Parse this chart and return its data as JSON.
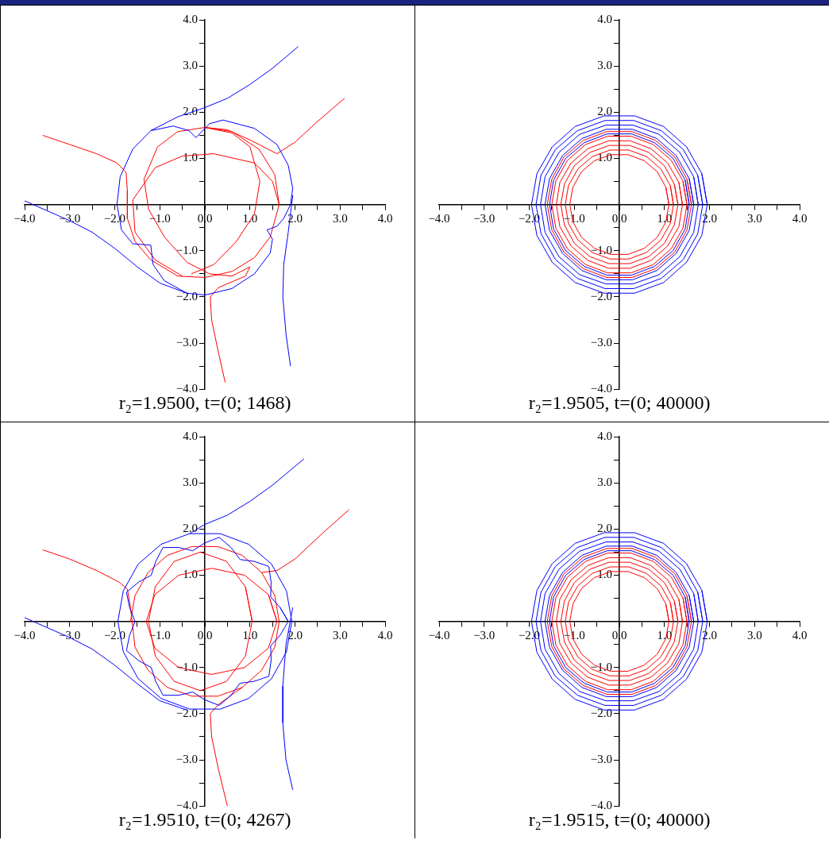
{
  "chart_data": [
    {
      "type": "line",
      "title": "r₂=1.9500, t=(0; 1468)",
      "xlim": [
        -4,
        4
      ],
      "ylim": [
        -4,
        4
      ],
      "xticks": [
        {
          "value": -4,
          "label": "−4.0"
        },
        {
          "value": -3.5,
          "label": null
        },
        {
          "value": -3,
          "label": "−3.0"
        },
        {
          "value": -2.5,
          "label": null
        },
        {
          "value": -2,
          "label": "−2.0"
        },
        {
          "value": -1.5,
          "label": null
        },
        {
          "value": -1,
          "label": "−1.0"
        },
        {
          "value": -0.5,
          "label": null
        },
        {
          "value": 0,
          "label": "0.0"
        },
        {
          "value": 0.5,
          "label": null
        },
        {
          "value": 1,
          "label": "1.0"
        },
        {
          "value": 1.5,
          "label": null
        },
        {
          "value": 2,
          "label": "2.0"
        },
        {
          "value": 2.5,
          "label": null
        },
        {
          "value": 3,
          "label": "3.0"
        },
        {
          "value": 3.5,
          "label": null
        },
        {
          "value": 4,
          "label": "4.0"
        }
      ],
      "yticks": [
        {
          "value": -4,
          "label": "−4.0"
        },
        {
          "value": -3.5,
          "label": null
        },
        {
          "value": -3,
          "label": "−3.0"
        },
        {
          "value": -2.5,
          "label": null
        },
        {
          "value": -2,
          "label": "−2.0"
        },
        {
          "value": -1.5,
          "label": null
        },
        {
          "value": -1,
          "label": "−1.0"
        },
        {
          "value": -0.5,
          "label": null
        },
        {
          "value": 0,
          "label": null
        },
        {
          "value": 0.5,
          "label": null
        },
        {
          "value": 1,
          "label": "1.0"
        },
        {
          "value": 1.5,
          "label": null
        },
        {
          "value": 2,
          "label": "2.0"
        },
        {
          "value": 2.5,
          "label": null
        },
        {
          "value": 3,
          "label": "3.0"
        },
        {
          "value": 3.5,
          "label": null
        },
        {
          "value": 4,
          "label": "4.0"
        }
      ],
      "series": [
        {
          "color": "#0000ff",
          "x": [
            2.07,
            1.5,
            1.0,
            0.5,
            0,
            -0.6,
            -1.2,
            -1.6,
            -1.88,
            -1.95,
            -1.85,
            -1.6,
            -1.2,
            -1.18,
            -1.15,
            -0.9,
            -0.4,
            0,
            0.6,
            1.1,
            1.45,
            1.5,
            1.38,
            1.6,
            1.75,
            1.9,
            1.95,
            1.85,
            1.6,
            1.1,
            0.4,
            0.1,
            0,
            -0.2,
            -0.35,
            -0.7,
            -1.2,
            null,
            -4.0,
            -3.0,
            -2.5,
            -2.0,
            -1.5,
            -1.0,
            -0.4,
            null,
            1.95,
            1.85,
            1.75,
            1.73,
            1.8,
            1.9
          ],
          "values": [
            3.42,
            2.95,
            2.6,
            2.3,
            2.1,
            1.9,
            1.6,
            1.2,
            0.6,
            0,
            -0.55,
            -0.85,
            -0.88,
            -1.05,
            -1.3,
            -1.65,
            -1.92,
            -1.96,
            -1.82,
            -1.5,
            -1.05,
            -0.75,
            -0.55,
            -0.47,
            -0.3,
            0,
            0.35,
            0.85,
            1.3,
            1.65,
            1.83,
            1.75,
            1.65,
            1.45,
            1.6,
            1.7,
            1.6,
            null,
            0.08,
            -0.35,
            -0.6,
            -0.95,
            -1.35,
            -1.7,
            -1.92,
            null,
            0.2,
            -0.6,
            -1.3,
            -2.0,
            -2.8,
            -3.5
          ]
        },
        {
          "color": "#ff0000",
          "x": [
            -3.6,
            -3.0,
            -2.4,
            -1.95,
            -1.75,
            -1.72,
            -1.72,
            -1.55,
            -1.2,
            -0.6,
            0,
            0.6,
            1.1,
            1.45,
            1.65,
            1.55,
            1.2,
            0.6,
            0,
            -0.6,
            -1.05,
            -1.35,
            -1.25,
            -0.9,
            -0.4,
            0.1,
            0.6,
            1.0,
            0.9,
            0.3,
            0.12,
            0.15,
            0.3,
            0.45,
            null,
            3.1,
            2.5,
            2.0,
            1.6,
            1.4,
            1.0,
            0.5,
            0,
            null,
            0,
            0.6,
            1.0,
            1.22,
            1.1,
            0.7,
            0.2,
            -0.3,
            null,
            1.65,
            1.5,
            1.1,
            0.2,
            -0.5,
            -1.1,
            -1.6,
            -1.55,
            -1.1,
            -0.5
          ],
          "values": [
            1.5,
            1.3,
            1.1,
            0.9,
            0.7,
            0.3,
            -0.3,
            -0.8,
            -1.2,
            -1.55,
            -1.58,
            -1.45,
            -1.15,
            -0.7,
            0,
            0.65,
            1.2,
            1.58,
            1.67,
            1.58,
            1.25,
            0.55,
            -0.1,
            -0.7,
            -1.25,
            -1.5,
            -1.55,
            -1.35,
            -1.55,
            -1.8,
            -2.0,
            -2.5,
            -3.2,
            -3.85,
            null,
            2.3,
            1.8,
            1.35,
            1.1,
            1.2,
            1.4,
            1.62,
            1.67,
            null,
            1.67,
            1.55,
            1.25,
            0.5,
            -0.2,
            -0.8,
            -1.3,
            -1.5,
            null,
            0,
            0.5,
            0.9,
            1.1,
            1.05,
            0.8,
            0.1,
            -0.6,
            -1.2,
            -1.55
          ]
        }
      ]
    },
    {
      "type": "line",
      "title": "r₂=1.9505, t=(0; 40000)",
      "xlim": [
        -4,
        4
      ],
      "ylim": [
        -4,
        4
      ],
      "xticks": [
        {
          "value": -4,
          "label": "−4.0"
        },
        {
          "value": -3.5,
          "label": null
        },
        {
          "value": -3,
          "label": "−3.0"
        },
        {
          "value": -2.5,
          "label": null
        },
        {
          "value": -2,
          "label": "−2.0"
        },
        {
          "value": -1.5,
          "label": null
        },
        {
          "value": -1,
          "label": "−1.0"
        },
        {
          "value": -0.5,
          "label": null
        },
        {
          "value": 0,
          "label": "0.0"
        },
        {
          "value": 0.5,
          "label": null
        },
        {
          "value": 1,
          "label": "1.0"
        },
        {
          "value": 1.5,
          "label": null
        },
        {
          "value": 2,
          "label": "2.0"
        },
        {
          "value": 2.5,
          "label": null
        },
        {
          "value": 3,
          "label": "3.0"
        },
        {
          "value": 3.5,
          "label": null
        },
        {
          "value": 4,
          "label": "4.0"
        }
      ],
      "yticks": [
        {
          "value": -4,
          "label": "−4.0"
        },
        {
          "value": -3.5,
          "label": null
        },
        {
          "value": -3,
          "label": "−3.0"
        },
        {
          "value": -2.5,
          "label": null
        },
        {
          "value": -2,
          "label": "−2.0"
        },
        {
          "value": -1.5,
          "label": null
        },
        {
          "value": -1,
          "label": "−1.0"
        },
        {
          "value": -0.5,
          "label": null
        },
        {
          "value": 0,
          "label": null
        },
        {
          "value": 0.5,
          "label": null
        },
        {
          "value": 1,
          "label": "1.0"
        },
        {
          "value": 1.5,
          "label": null
        },
        {
          "value": 2,
          "label": "2.0"
        },
        {
          "value": 2.5,
          "label": null
        },
        {
          "value": 3,
          "label": "3.0"
        },
        {
          "value": 3.5,
          "label": null
        },
        {
          "value": 4,
          "label": "4.0"
        }
      ],
      "series": [
        {
          "color": "#0000ff",
          "x": [
            1.95,
            1.83,
            1.49,
            0.98,
            0.34,
            -0.34,
            -0.98,
            -1.49,
            -1.83,
            -1.95,
            -1.83,
            -1.49,
            -0.98,
            -0.34,
            0.34,
            0.98,
            1.49,
            1.83,
            1.95,
            1.83
          ],
          "values": [
            0,
            0.67,
            1.25,
            1.69,
            1.92,
            1.92,
            1.69,
            1.25,
            0.67,
            0,
            -0.67,
            -1.25,
            -1.69,
            -1.92,
            -1.92,
            -1.69,
            -1.25,
            -0.67,
            0,
            0.67
          ]
        },
        {
          "color": "#0000ff",
          "x": [
            1.85,
            1.74,
            1.42,
            0.93,
            0.32,
            -0.32,
            -0.93,
            -1.42,
            -1.74,
            -1.85,
            -1.74,
            -1.42,
            -0.93,
            -0.32,
            0.32,
            0.93,
            1.42,
            1.74,
            1.85,
            1.74
          ],
          "values": [
            0,
            0.63,
            1.19,
            1.6,
            1.82,
            1.82,
            1.6,
            1.19,
            0.63,
            0,
            -0.63,
            -1.19,
            -1.6,
            -1.82,
            -1.82,
            -1.6,
            -1.19,
            -0.63,
            0,
            0.63
          ]
        },
        {
          "color": "#0000ff",
          "x": [
            1.75,
            1.65,
            1.34,
            0.88,
            0.3,
            -0.3,
            -0.88,
            -1.34,
            -1.65,
            -1.75,
            -1.65,
            -1.34,
            -0.88,
            -0.3,
            0.3,
            0.88,
            1.34,
            1.65,
            1.75,
            1.65
          ],
          "values": [
            0,
            0.6,
            1.13,
            1.52,
            1.72,
            1.72,
            1.52,
            1.13,
            0.6,
            0,
            -0.6,
            -1.13,
            -1.52,
            -1.72,
            -1.72,
            -1.52,
            -1.13,
            -0.6,
            0,
            0.6
          ]
        },
        {
          "color": "#0000ff",
          "x": [
            1.65,
            1.55,
            1.26,
            0.83,
            0.29,
            -0.29,
            -0.83,
            -1.26,
            -1.55,
            -1.65,
            -1.55,
            -1.26,
            -0.83,
            -0.29,
            0.29,
            0.83,
            1.26,
            1.55,
            1.65,
            1.55
          ],
          "values": [
            0,
            0.56,
            1.06,
            1.43,
            1.63,
            1.63,
            1.43,
            1.06,
            0.56,
            0,
            -0.56,
            -1.06,
            -1.43,
            -1.63,
            -1.63,
            -1.43,
            -1.06,
            -0.56,
            0,
            0.56
          ]
        },
        {
          "color": "#0000ff",
          "x": [
            1.55,
            1.46,
            1.19,
            0.78,
            0.27,
            -0.27,
            -0.78,
            -1.19,
            -1.46,
            -1.55,
            -1.46,
            -1.19,
            -0.78,
            -0.27,
            0.27,
            0.78,
            1.19,
            1.46,
            1.55,
            1.46
          ],
          "values": [
            0,
            0.53,
            1.0,
            1.34,
            1.53,
            1.53,
            1.34,
            1.0,
            0.53,
            0,
            -0.53,
            -1.0,
            -1.34,
            -1.53,
            -1.53,
            -1.34,
            -1.0,
            -0.53,
            0,
            0.53
          ]
        },
        {
          "color": "#ff0000",
          "x": [
            1.6,
            1.5,
            1.23,
            0.8,
            0.28,
            -0.28,
            -0.8,
            -1.23,
            -1.5,
            -1.6,
            -1.5,
            -1.23,
            -0.8,
            -0.28,
            0.28,
            0.8,
            1.23,
            1.5,
            1.6,
            1.5
          ],
          "values": [
            0,
            0.55,
            1.03,
            1.39,
            1.58,
            1.58,
            1.39,
            1.03,
            0.55,
            0,
            -0.55,
            -1.03,
            -1.39,
            -1.58,
            -1.58,
            -1.39,
            -1.03,
            -0.55,
            0,
            0.55
          ]
        },
        {
          "color": "#ff0000",
          "x": [
            1.5,
            1.41,
            1.15,
            0.75,
            0.26,
            -0.26,
            -0.75,
            -1.15,
            -1.41,
            -1.5,
            -1.41,
            -1.15,
            -0.75,
            -0.26,
            0.26,
            0.75,
            1.15,
            1.41,
            1.5,
            1.41
          ],
          "values": [
            0,
            0.51,
            0.96,
            1.3,
            1.48,
            1.48,
            1.3,
            0.96,
            0.51,
            0,
            -0.51,
            -0.96,
            -1.3,
            -1.48,
            -1.48,
            -1.3,
            -0.96,
            -0.51,
            0,
            0.51
          ]
        },
        {
          "color": "#ff0000",
          "x": [
            1.4,
            1.32,
            1.07,
            0.7,
            0.24,
            -0.24,
            -0.7,
            -1.07,
            -1.32,
            -1.4,
            -1.32,
            -1.07,
            -0.7,
            -0.24,
            0.24,
            0.7,
            1.07,
            1.32,
            1.4,
            1.32
          ],
          "values": [
            0,
            0.48,
            0.9,
            1.21,
            1.38,
            1.38,
            1.21,
            0.9,
            0.48,
            0,
            -0.48,
            -0.9,
            -1.21,
            -1.38,
            -1.38,
            -1.21,
            -0.9,
            -0.48,
            0,
            0.48
          ]
        },
        {
          "color": "#ff0000",
          "x": [
            1.3,
            1.22,
            1.0,
            0.65,
            0.23,
            -0.23,
            -0.65,
            -1.0,
            -1.22,
            -1.3,
            -1.22,
            -1.0,
            -0.65,
            -0.23,
            0.23,
            0.65,
            1.0,
            1.22,
            1.3,
            1.22
          ],
          "values": [
            0,
            0.44,
            0.84,
            1.13,
            1.28,
            1.28,
            1.13,
            0.84,
            0.44,
            0,
            -0.44,
            -0.84,
            -1.13,
            -1.28,
            -1.28,
            -1.13,
            -0.84,
            -0.44,
            0,
            0.44
          ]
        },
        {
          "color": "#ff0000",
          "x": [
            1.2,
            1.13,
            0.92,
            0.6,
            0.21,
            -0.21,
            -0.6,
            -0.92,
            -1.13,
            -1.2,
            -1.13,
            -0.92,
            -0.6,
            -0.21,
            0.21,
            0.6,
            0.92,
            1.13,
            1.2,
            1.13
          ],
          "values": [
            0,
            0.41,
            0.77,
            1.04,
            1.18,
            1.18,
            1.04,
            0.77,
            0.41,
            0,
            -0.41,
            -0.77,
            -1.04,
            -1.18,
            -1.18,
            -1.04,
            -0.77,
            -0.41,
            0,
            0.41
          ]
        },
        {
          "color": "#ff0000",
          "x": [
            1.1,
            1.03,
            0.84,
            0.55,
            0.19,
            -0.19,
            -0.55,
            -0.84,
            -1.03,
            -1.1,
            -1.03,
            -0.84,
            -0.55,
            -0.19,
            0.19,
            0.55,
            0.84,
            1.03,
            1.1,
            1.03
          ],
          "values": [
            0,
            0.38,
            0.71,
            0.95,
            1.08,
            1.08,
            0.95,
            0.71,
            0.38,
            0,
            -0.38,
            -0.71,
            -0.95,
            -1.08,
            -1.08,
            -0.95,
            -0.71,
            -0.38,
            0,
            0.38
          ]
        }
      ]
    },
    {
      "type": "line",
      "title": "r₂=1.9510, t=(0; 4267)",
      "xlim": [
        -4,
        4
      ],
      "ylim": [
        -4,
        4
      ],
      "xticks": [
        {
          "value": -4,
          "label": "−4.0"
        },
        {
          "value": -3.5,
          "label": null
        },
        {
          "value": -3,
          "label": "−3.0"
        },
        {
          "value": -2.5,
          "label": null
        },
        {
          "value": -2,
          "label": "−2.0"
        },
        {
          "value": -1.5,
          "label": null
        },
        {
          "value": -1,
          "label": "−1.0"
        },
        {
          "value": -0.5,
          "label": null
        },
        {
          "value": 0,
          "label": "0.0"
        },
        {
          "value": 0.5,
          "label": null
        },
        {
          "value": 1,
          "label": "1.0"
        },
        {
          "value": 1.5,
          "label": null
        },
        {
          "value": 2,
          "label": "2.0"
        },
        {
          "value": 2.5,
          "label": null
        },
        {
          "value": 3,
          "label": "3.0"
        },
        {
          "value": 3.5,
          "label": null
        },
        {
          "value": 4,
          "label": "4.0"
        }
      ],
      "yticks": [
        {
          "value": -4,
          "label": "−4.0"
        },
        {
          "value": -3.5,
          "label": null
        },
        {
          "value": -3,
          "label": "−3.0"
        },
        {
          "value": -2.5,
          "label": null
        },
        {
          "value": -2,
          "label": "−2.0"
        },
        {
          "value": -1.5,
          "label": null
        },
        {
          "value": -1,
          "label": "−1.0"
        },
        {
          "value": -0.5,
          "label": null
        },
        {
          "value": 0,
          "label": null
        },
        {
          "value": 0.5,
          "label": null
        },
        {
          "value": 1,
          "label": "1.0"
        },
        {
          "value": 1.5,
          "label": null
        },
        {
          "value": 2,
          "label": "2.0"
        },
        {
          "value": 2.5,
          "label": null
        },
        {
          "value": 3,
          "label": "3.0"
        },
        {
          "value": 3.5,
          "label": null
        },
        {
          "value": 4,
          "label": "4.0"
        }
      ],
      "series": [
        {
          "color": "#0000ff",
          "x": [
            2.2,
            1.5,
            1.0,
            0.5,
            0,
            -0.34,
            -0.97,
            -1.48,
            -1.81,
            -1.93,
            -1.81,
            -1.48,
            -0.97,
            -0.34,
            0.34,
            0.97,
            1.48,
            1.81,
            1.93,
            1.81,
            1.48,
            0.97,
            0.34,
            -0.34
          ],
          "values": [
            3.52,
            2.95,
            2.6,
            2.3,
            2.1,
            1.9,
            1.67,
            1.24,
            0.66,
            0,
            -0.66,
            -1.24,
            -1.67,
            -1.9,
            -1.9,
            -1.67,
            -1.24,
            -0.66,
            0,
            0.66,
            1.24,
            1.67,
            1.9,
            1.9
          ]
        },
        {
          "color": "#0000ff",
          "x": [
            1.85,
            1.67,
            1.46,
            1.47,
            1.42,
            1.09,
            0.78,
            0.58,
            0.32,
            0,
            -0.27,
            -0.58,
            -0.93,
            -1.09,
            -1.19,
            -1.47,
            -1.74,
            -1.67,
            -1.55,
            -1.67,
            -1.74,
            -1.47,
            -1.19,
            -1.09,
            -0.93,
            -0.58,
            -0.27,
            0,
            0.32,
            0.58,
            0.78,
            1.09,
            1.42,
            1.47,
            1.46,
            1.67,
            1.85,
            1.67
          ],
          "values": [
            0,
            0.3,
            0.53,
            0.85,
            1.19,
            1.3,
            1.34,
            1.6,
            1.82,
            1.7,
            1.53,
            1.6,
            1.6,
            1.3,
            1.0,
            0.85,
            0.63,
            0.3,
            0,
            -0.3,
            -0.63,
            -0.85,
            -1.0,
            -1.3,
            -1.6,
            -1.6,
            -1.53,
            -1.7,
            -1.82,
            -1.6,
            -1.34,
            -1.3,
            -1.19,
            -0.85,
            -0.53,
            -0.3,
            0,
            0.3
          ]
        },
        {
          "color": "#0000ff",
          "x": [
            -4.0,
            -3.0,
            -2.5,
            -2.0,
            -1.5,
            -1.0,
            -0.4
          ],
          "values": [
            0.08,
            -0.35,
            -0.6,
            -0.95,
            -1.35,
            -1.72,
            -1.92
          ]
        },
        {
          "color": "#0000ff",
          "x": [
            1.95,
            1.8,
            1.73,
            1.73,
            1.8,
            1.95
          ],
          "values": [
            0.3,
            -0.5,
            -1.4,
            -2.2,
            -3.0,
            -3.65
          ]
        },
        {
          "color": "#ff0000",
          "x": [
            -3.6,
            -3.0,
            -2.4,
            -1.9,
            -1.72,
            -1.65,
            -1.55,
            -1.26,
            -0.83,
            -0.29,
            0.29,
            0.83,
            1.26,
            1.55,
            1.65,
            1.55,
            1.26,
            0.83,
            0.29,
            -0.29,
            -0.83,
            -1.26,
            -1.55,
            -1.65
          ],
          "values": [
            1.55,
            1.35,
            1.1,
            0.85,
            0.7,
            0.3,
            -0.56,
            -1.06,
            -1.43,
            -1.62,
            -1.62,
            -1.43,
            -1.06,
            -0.56,
            0,
            0.56,
            1.06,
            1.43,
            1.62,
            1.62,
            1.43,
            1.06,
            0.56,
            0
          ]
        },
        {
          "color": "#ff0000",
          "x": [
            3.2,
            2.6,
            2.0,
            1.6,
            1.26
          ],
          "values": [
            2.42,
            1.9,
            1.35,
            1.1,
            1.06
          ]
        },
        {
          "color": "#ff0000",
          "x": [
            1.6,
            1.41,
            0.88,
            0.15,
            -0.58,
            -1.11,
            -1.3,
            -1.11,
            -0.58,
            0.15,
            0.88,
            1.41,
            1.6,
            1.41
          ],
          "values": [
            0,
            0.58,
            1.0,
            1.15,
            1.0,
            0.58,
            0,
            -0.58,
            -1.0,
            -1.15,
            -1.0,
            -0.58,
            0,
            0.58
          ]
        },
        {
          "color": "#ff0000",
          "x": [
            1.05,
            0.9,
            0.48,
            -0.1,
            -0.68,
            -1.1,
            -1.25,
            -1.1,
            -0.68,
            -0.1,
            0.48,
            0.9,
            1.05,
            0.9
          ],
          "values": [
            0,
            0.75,
            1.3,
            1.5,
            1.3,
            0.75,
            0,
            -0.75,
            -1.3,
            -1.5,
            -1.3,
            -0.75,
            0,
            0.75
          ]
        },
        {
          "color": "#ff0000",
          "x": [
            0.83,
            0.3,
            0.12,
            0.15,
            0.3,
            0.5
          ],
          "values": [
            -1.43,
            -1.8,
            -2.0,
            -2.5,
            -3.2,
            -4.0
          ]
        }
      ]
    },
    {
      "type": "line",
      "title": "r₂=1.9515, t=(0; 40000)",
      "xlim": [
        -4,
        4
      ],
      "ylim": [
        -4,
        4
      ],
      "xticks": [
        {
          "value": -4,
          "label": "−4.0"
        },
        {
          "value": -3.5,
          "label": null
        },
        {
          "value": -3,
          "label": "−3.0"
        },
        {
          "value": -2.5,
          "label": null
        },
        {
          "value": -2,
          "label": "−2.0"
        },
        {
          "value": -1.5,
          "label": null
        },
        {
          "value": -1,
          "label": "−1.0"
        },
        {
          "value": -0.5,
          "label": null
        },
        {
          "value": 0,
          "label": "0.0"
        },
        {
          "value": 0.5,
          "label": null
        },
        {
          "value": 1,
          "label": "1.0"
        },
        {
          "value": 1.5,
          "label": null
        },
        {
          "value": 2,
          "label": "2.0"
        },
        {
          "value": 2.5,
          "label": null
        },
        {
          "value": 3,
          "label": "3.0"
        },
        {
          "value": 3.5,
          "label": null
        },
        {
          "value": 4,
          "label": "4.0"
        }
      ],
      "yticks": [
        {
          "value": -4,
          "label": "−4.0"
        },
        {
          "value": -3.5,
          "label": null
        },
        {
          "value": -3,
          "label": "−3.0"
        },
        {
          "value": -2.5,
          "label": null
        },
        {
          "value": -2,
          "label": "−2.0"
        },
        {
          "value": -1.5,
          "label": null
        },
        {
          "value": -1,
          "label": "−1.0"
        },
        {
          "value": -0.5,
          "label": null
        },
        {
          "value": 0,
          "label": null
        },
        {
          "value": 0.5,
          "label": null
        },
        {
          "value": 1,
          "label": "1.0"
        },
        {
          "value": 1.5,
          "label": null
        },
        {
          "value": 2,
          "label": "2.0"
        },
        {
          "value": 2.5,
          "label": null
        },
        {
          "value": 3,
          "label": "3.0"
        },
        {
          "value": 3.5,
          "label": null
        },
        {
          "value": 4,
          "label": "4.0"
        }
      ],
      "series": [
        {
          "color": "#0000ff",
          "x": [
            1.95,
            1.83,
            1.49,
            0.98,
            0.34,
            -0.34,
            -0.98,
            -1.49,
            -1.83,
            -1.95,
            -1.83,
            -1.49,
            -0.98,
            -0.34,
            0.34,
            0.98,
            1.49,
            1.83,
            1.95,
            1.83
          ],
          "values": [
            0,
            0.67,
            1.25,
            1.69,
            1.92,
            1.92,
            1.69,
            1.25,
            0.67,
            0,
            -0.67,
            -1.25,
            -1.69,
            -1.92,
            -1.92,
            -1.69,
            -1.25,
            -0.67,
            0,
            0.67
          ]
        },
        {
          "color": "#0000ff",
          "x": [
            1.85,
            1.74,
            1.42,
            0.93,
            0.32,
            -0.32,
            -0.93,
            -1.42,
            -1.74,
            -1.85,
            -1.74,
            -1.42,
            -0.93,
            -0.32,
            0.32,
            0.93,
            1.42,
            1.74,
            1.85,
            1.74
          ],
          "values": [
            0,
            0.63,
            1.19,
            1.6,
            1.82,
            1.82,
            1.6,
            1.19,
            0.63,
            0,
            -0.63,
            -1.19,
            -1.6,
            -1.82,
            -1.82,
            -1.6,
            -1.19,
            -0.63,
            0,
            0.63
          ]
        },
        {
          "color": "#0000ff",
          "x": [
            1.75,
            1.65,
            1.34,
            0.88,
            0.3,
            -0.3,
            -0.88,
            -1.34,
            -1.65,
            -1.75,
            -1.65,
            -1.34,
            -0.88,
            -0.3,
            0.3,
            0.88,
            1.34,
            1.65,
            1.75,
            1.65
          ],
          "values": [
            0,
            0.6,
            1.13,
            1.52,
            1.72,
            1.72,
            1.52,
            1.13,
            0.6,
            0,
            -0.6,
            -1.13,
            -1.52,
            -1.72,
            -1.72,
            -1.52,
            -1.13,
            -0.6,
            0,
            0.6
          ]
        },
        {
          "color": "#0000ff",
          "x": [
            1.65,
            1.55,
            1.26,
            0.83,
            0.29,
            -0.29,
            -0.83,
            -1.26,
            -1.55,
            -1.65,
            -1.55,
            -1.26,
            -0.83,
            -0.29,
            0.29,
            0.83,
            1.26,
            1.55,
            1.65,
            1.55
          ],
          "values": [
            0,
            0.56,
            1.06,
            1.43,
            1.63,
            1.63,
            1.43,
            1.06,
            0.56,
            0,
            -0.56,
            -1.06,
            -1.43,
            -1.63,
            -1.63,
            -1.43,
            -1.06,
            -0.56,
            0,
            0.56
          ]
        },
        {
          "color": "#0000ff",
          "x": [
            1.55,
            1.46,
            1.19,
            0.78,
            0.27,
            -0.27,
            -0.78,
            -1.19,
            -1.46,
            -1.55,
            -1.46,
            -1.19,
            -0.78,
            -0.27,
            0.27,
            0.78,
            1.19,
            1.46,
            1.55,
            1.46
          ],
          "values": [
            0,
            0.53,
            1.0,
            1.34,
            1.53,
            1.53,
            1.34,
            1.0,
            0.53,
            0,
            -0.53,
            -1.0,
            -1.34,
            -1.53,
            -1.53,
            -1.34,
            -1.0,
            -0.53,
            0,
            0.53
          ]
        },
        {
          "color": "#ff0000",
          "x": [
            1.6,
            1.5,
            1.23,
            0.8,
            0.28,
            -0.28,
            -0.8,
            -1.23,
            -1.5,
            -1.6,
            -1.5,
            -1.23,
            -0.8,
            -0.28,
            0.28,
            0.8,
            1.23,
            1.5,
            1.6,
            1.5
          ],
          "values": [
            0,
            0.55,
            1.03,
            1.39,
            1.58,
            1.58,
            1.39,
            1.03,
            0.55,
            0,
            -0.55,
            -1.03,
            -1.39,
            -1.58,
            -1.58,
            -1.39,
            -1.03,
            -0.55,
            0,
            0.55
          ]
        },
        {
          "color": "#ff0000",
          "x": [
            1.5,
            1.41,
            1.15,
            0.75,
            0.26,
            -0.26,
            -0.75,
            -1.15,
            -1.41,
            -1.5,
            -1.41,
            -1.15,
            -0.75,
            -0.26,
            0.26,
            0.75,
            1.15,
            1.41,
            1.5,
            1.41
          ],
          "values": [
            0,
            0.51,
            0.96,
            1.3,
            1.48,
            1.48,
            1.3,
            0.96,
            0.51,
            0,
            -0.51,
            -0.96,
            -1.3,
            -1.48,
            -1.48,
            -1.3,
            -0.96,
            -0.51,
            0,
            0.51
          ]
        },
        {
          "color": "#ff0000",
          "x": [
            1.4,
            1.32,
            1.07,
            0.7,
            0.24,
            -0.24,
            -0.7,
            -1.07,
            -1.32,
            -1.4,
            -1.32,
            -1.07,
            -0.7,
            -0.24,
            0.24,
            0.7,
            1.07,
            1.32,
            1.4,
            1.32
          ],
          "values": [
            0,
            0.48,
            0.9,
            1.21,
            1.38,
            1.38,
            1.21,
            0.9,
            0.48,
            0,
            -0.48,
            -0.9,
            -1.21,
            -1.38,
            -1.38,
            -1.21,
            -0.9,
            -0.48,
            0,
            0.48
          ]
        },
        {
          "color": "#ff0000",
          "x": [
            1.3,
            1.22,
            1.0,
            0.65,
            0.23,
            -0.23,
            -0.65,
            -1.0,
            -1.22,
            -1.3,
            -1.22,
            -1.0,
            -0.65,
            -0.23,
            0.23,
            0.65,
            1.0,
            1.22,
            1.3,
            1.22
          ],
          "values": [
            0,
            0.44,
            0.84,
            1.13,
            1.28,
            1.28,
            1.13,
            0.84,
            0.44,
            0,
            -0.44,
            -0.84,
            -1.13,
            -1.28,
            -1.28,
            -1.13,
            -0.84,
            -0.44,
            0,
            0.44
          ]
        },
        {
          "color": "#ff0000",
          "x": [
            1.2,
            1.13,
            0.92,
            0.6,
            0.21,
            -0.21,
            -0.6,
            -0.92,
            -1.13,
            -1.2,
            -1.13,
            -0.92,
            -0.6,
            -0.21,
            0.21,
            0.6,
            0.92,
            1.13,
            1.2,
            1.13
          ],
          "values": [
            0,
            0.41,
            0.77,
            1.04,
            1.18,
            1.18,
            1.04,
            0.77,
            0.41,
            0,
            -0.41,
            -0.77,
            -1.04,
            -1.18,
            -1.18,
            -1.04,
            -0.77,
            -0.41,
            0,
            0.41
          ]
        },
        {
          "color": "#ff0000",
          "x": [
            1.1,
            1.03,
            0.84,
            0.55,
            0.19,
            -0.19,
            -0.55,
            -0.84,
            -1.03,
            -1.1,
            -1.03,
            -0.84,
            -0.55,
            -0.19,
            0.19,
            0.55,
            0.84,
            1.03,
            1.1,
            1.03
          ],
          "values": [
            0,
            0.38,
            0.71,
            0.95,
            1.08,
            1.08,
            0.95,
            0.71,
            0.38,
            0,
            -0.38,
            -0.71,
            -0.95,
            -1.08,
            -1.08,
            -0.95,
            -0.71,
            -0.38,
            0,
            0.38
          ]
        }
      ]
    }
  ]
}
